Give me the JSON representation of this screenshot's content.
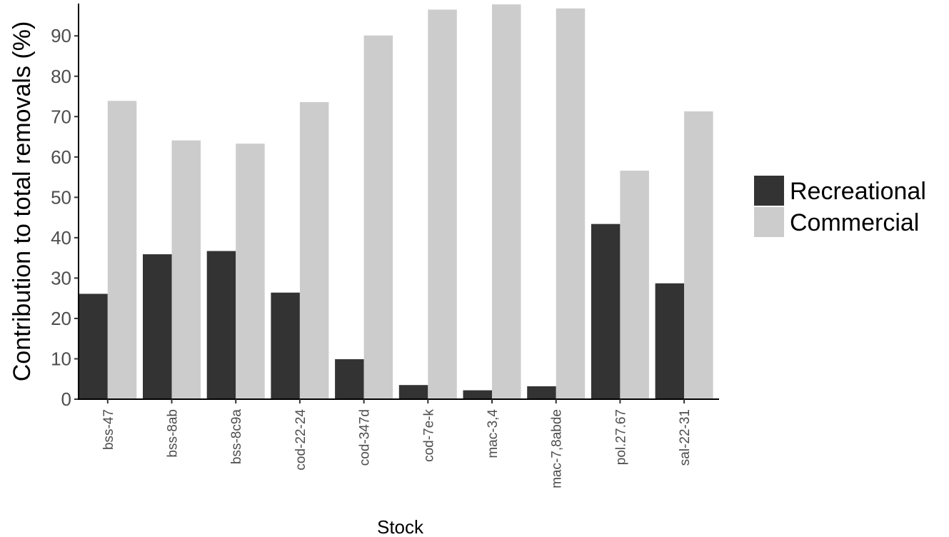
{
  "chart_data": {
    "type": "bar",
    "categories": [
      "bss-47",
      "bss-8ab",
      "bss-8c9a",
      "cod-22-24",
      "cod-347d",
      "cod-7e-k",
      "mac-3,4",
      "mac-7,8abde",
      "pol.27.67",
      "sal-22-31"
    ],
    "series": [
      {
        "name": "Recreational",
        "color": "#333333",
        "values": [
          26.1,
          35.9,
          36.7,
          26.4,
          9.9,
          3.5,
          2.2,
          3.2,
          43.4,
          28.7
        ]
      },
      {
        "name": "Commercial",
        "color": "#cccccc",
        "values": [
          73.9,
          64.1,
          63.3,
          73.6,
          90.1,
          96.5,
          97.8,
          96.8,
          56.6,
          71.3
        ]
      }
    ],
    "title": "",
    "xlabel": "Stock",
    "ylabel": "Contribution to total removals (%)",
    "ylim": [
      0,
      98
    ],
    "yticks": [
      0,
      10,
      20,
      30,
      40,
      50,
      60,
      70,
      80,
      90
    ],
    "grid": false,
    "legend_position": "right"
  }
}
